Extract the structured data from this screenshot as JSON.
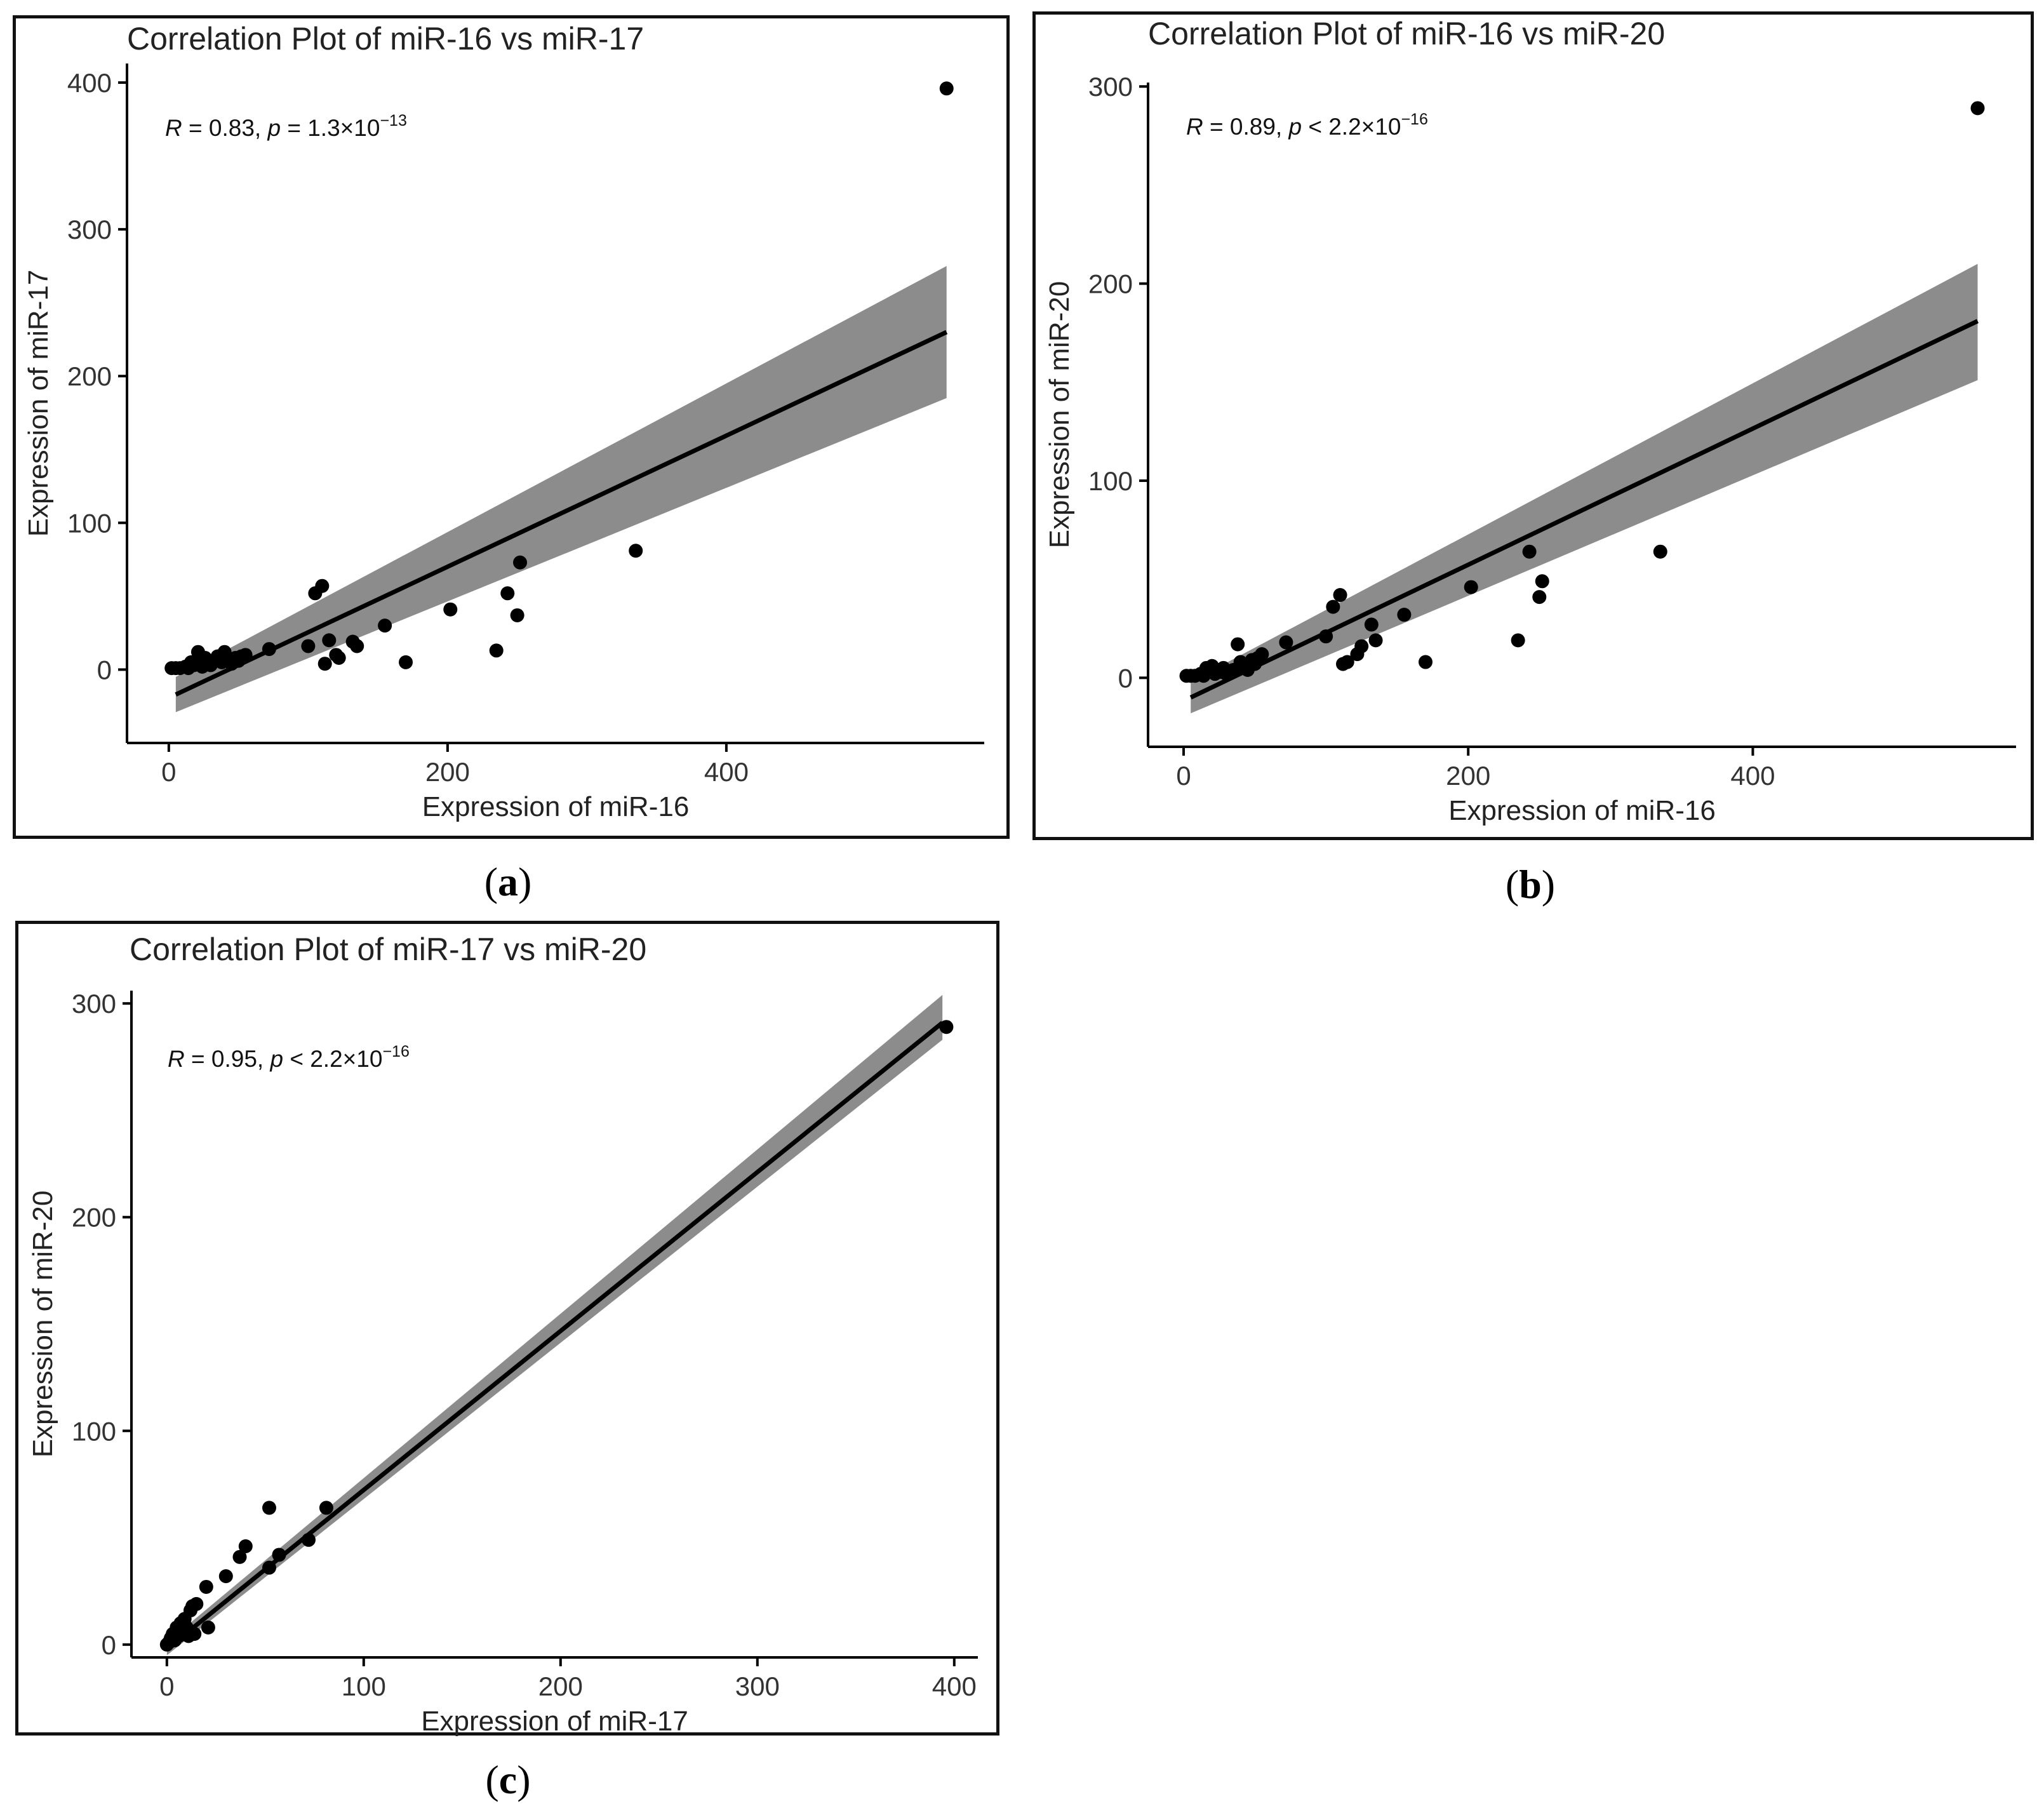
{
  "colors": {
    "band": "#8c8c8c",
    "line": "#000000",
    "point": "#000000",
    "axis": "#000000",
    "frame": "#111111"
  },
  "chart_data": [
    {
      "type": "scatter",
      "panel_label": "a",
      "title": "Correlation Plot of miR-16 vs miR-17",
      "xlabel": "Expression of miR-16",
      "ylabel": "Expression of miR-17",
      "annotation": {
        "r_symbol": "R",
        "r_text": " = 0.83, ",
        "p_symbol": "p",
        "p_text": " = 1.3×10",
        "p_exp": "−13"
      },
      "xlim": [
        -30,
        585
      ],
      "ylim": [
        -50,
        413
      ],
      "xticks": [
        0,
        200,
        400
      ],
      "yticks": [
        0,
        100,
        200,
        300,
        400
      ],
      "x": [
        2,
        5,
        8,
        12,
        14,
        16,
        18,
        20,
        21,
        22,
        24,
        26,
        28,
        30,
        35,
        38,
        40,
        42,
        45,
        48,
        50,
        52,
        55,
        72,
        100,
        105,
        110,
        112,
        115,
        120,
        122,
        132,
        135,
        155,
        170,
        202,
        235,
        243,
        250,
        252,
        335,
        558
      ],
      "y": [
        1,
        1,
        1,
        2,
        1,
        5,
        3,
        6,
        12,
        4,
        2,
        8,
        5,
        3,
        9,
        5,
        12,
        7,
        4,
        8,
        6,
        9,
        10,
        14,
        16,
        52,
        57,
        4,
        20,
        10,
        8,
        19,
        16,
        30,
        5,
        41,
        13,
        52,
        37,
        73,
        81,
        396
      ],
      "fit": {
        "x0": 5,
        "x1": 558,
        "y0": -17,
        "y1": 230,
        "band_lo0": -29,
        "band_hi0": -5,
        "band_lo1": 185,
        "band_hi1": 275
      }
    },
    {
      "type": "scatter",
      "panel_label": "b",
      "title": "Correlation Plot of miR-16 vs miR-20",
      "xlabel": "Expression of miR-16",
      "ylabel": "Expression of miR-20",
      "annotation": {
        "r_symbol": "R",
        "r_text": " = 0.89, ",
        "p_symbol": "p",
        "p_text": " < 2.2×10",
        "p_exp": "−16"
      },
      "xlim": [
        -25,
        585
      ],
      "ylim": [
        -35,
        302
      ],
      "xticks": [
        0,
        200,
        400
      ],
      "yticks": [
        0,
        100,
        200,
        300
      ],
      "x": [
        2,
        5,
        8,
        12,
        14,
        16,
        18,
        20,
        22,
        24,
        26,
        28,
        30,
        35,
        38,
        40,
        42,
        45,
        48,
        50,
        52,
        55,
        72,
        100,
        105,
        110,
        112,
        115,
        122,
        125,
        132,
        135,
        155,
        170,
        202,
        235,
        243,
        250,
        252,
        335,
        558
      ],
      "y": [
        1,
        1,
        1,
        2,
        1,
        5,
        3,
        6,
        2,
        4,
        3,
        5,
        2,
        4,
        17,
        8,
        6,
        4,
        9,
        7,
        10,
        12,
        18,
        21,
        36,
        42,
        7,
        8,
        12,
        16,
        27,
        19,
        32,
        8,
        46,
        19,
        64,
        41,
        49,
        64,
        289
      ],
      "fit": {
        "x0": 5,
        "x1": 558,
        "y0": -10,
        "y1": 181,
        "band_lo0": -18,
        "band_hi0": -2,
        "band_lo1": 151,
        "band_hi1": 210
      }
    },
    {
      "type": "scatter",
      "panel_label": "c",
      "title": "Correlation Plot of miR-17 vs miR-20",
      "xlabel": "Expression of miR-17",
      "ylabel": "Expression of miR-20",
      "annotation": {
        "r_symbol": "R",
        "r_text": " = 0.95, ",
        "p_symbol": "p",
        "p_text": " < 2.2×10",
        "p_exp": "−16"
      },
      "xlim": [
        -18,
        412
      ],
      "ylim": [
        -6,
        306
      ],
      "xticks": [
        0,
        100,
        200,
        300,
        400
      ],
      "yticks": [
        0,
        100,
        200,
        300
      ],
      "x": [
        0,
        1,
        2,
        3,
        4,
        5,
        6,
        7,
        8,
        9,
        10,
        11,
        12,
        13,
        14,
        15,
        20,
        21,
        30,
        37,
        40,
        52,
        52,
        57,
        72,
        81,
        396
      ],
      "y": [
        0,
        1,
        3,
        5,
        2,
        8,
        4,
        10,
        6,
        12,
        8,
        4,
        16,
        18,
        5,
        19,
        27,
        8,
        32,
        41,
        46,
        64,
        36,
        42,
        49,
        64,
        289
      ],
      "fit": {
        "x0": 0,
        "x1": 394,
        "y0": -2,
        "y1": 291,
        "band_lo0": -5,
        "band_hi0": 1,
        "band_lo1": 283,
        "band_hi1": 304
      }
    }
  ]
}
